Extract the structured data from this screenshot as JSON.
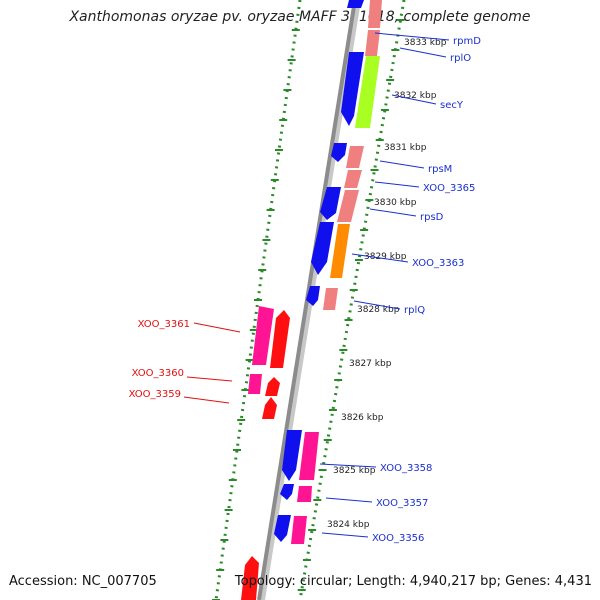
{
  "title": "Xanthomonas oryzae pv. oryzae MAFF 311018, complete genome",
  "footer": {
    "accession": "Accession: NC_007705",
    "topology": "Topology: circular; Length: 4,940,217 bp; Genes: 4,431"
  },
  "colors": {
    "axis": "#8c8c8c",
    "tick": "#2a8a2a",
    "ruler_text": "#222222",
    "label_right": "#1a2fd0",
    "label_left": "#e01010",
    "blue": "#1010ee",
    "salmon": "#f08080",
    "green_yellow": "#aaff22",
    "orange": "#ff8c00",
    "magenta": "#ff1493",
    "red": "#ff1010"
  },
  "ruler": [
    "3833 kbp",
    "3832 kbp",
    "3831 kbp",
    "3830 kbp",
    "3829 kbp",
    "3828 kbp",
    "3827 kbp",
    "3826 kbp",
    "3825 kbp",
    "3824 kbp"
  ],
  "labels_right": [
    "rpmD",
    "rplO",
    "secY",
    "rpsM",
    "XOO_3365",
    "rpsD",
    "XOO_3363",
    "rplQ",
    "XOO_3358",
    "XOO_3357",
    "XOO_3356"
  ],
  "labels_left": [
    "XOO_3361",
    "XOO_3360",
    "XOO_3359"
  ],
  "features": [
    {
      "name": "gene-rpmD-top",
      "color": "blue"
    },
    {
      "name": "gene-rpmD",
      "color": "salmon"
    },
    {
      "name": "gene-rplO-top",
      "color": "salmon"
    },
    {
      "name": "gene-secY",
      "color": "green_yellow"
    },
    {
      "name": "gene-blue-1",
      "color": "blue"
    },
    {
      "name": "gene-rpsM",
      "color": "salmon"
    },
    {
      "name": "gene-XOO_3365",
      "color": "salmon"
    },
    {
      "name": "gene-rpsD",
      "color": "salmon"
    },
    {
      "name": "gene-blue-2",
      "color": "blue"
    },
    {
      "name": "gene-blue-3",
      "color": "blue"
    },
    {
      "name": "gene-blue-4",
      "color": "blue"
    },
    {
      "name": "gene-XOO_3363",
      "color": "orange"
    },
    {
      "name": "gene-blue-5",
      "color": "blue"
    },
    {
      "name": "gene-rplQ",
      "color": "salmon"
    },
    {
      "name": "gene-XOO_3361-a",
      "color": "magenta"
    },
    {
      "name": "gene-XOO_3361-b",
      "color": "red"
    },
    {
      "name": "gene-XOO_3360-a",
      "color": "magenta"
    },
    {
      "name": "gene-XOO_3360-b",
      "color": "red"
    },
    {
      "name": "gene-XOO_3359",
      "color": "red"
    },
    {
      "name": "gene-XOO_3358-a",
      "color": "blue"
    },
    {
      "name": "gene-XOO_3358-b",
      "color": "magenta"
    },
    {
      "name": "gene-XOO_3357-a",
      "color": "blue"
    },
    {
      "name": "gene-XOO_3357-b",
      "color": "magenta"
    },
    {
      "name": "gene-XOO_3356-a",
      "color": "blue"
    },
    {
      "name": "gene-XOO_3356-b",
      "color": "magenta"
    },
    {
      "name": "gene-bottom-red",
      "color": "red"
    }
  ]
}
